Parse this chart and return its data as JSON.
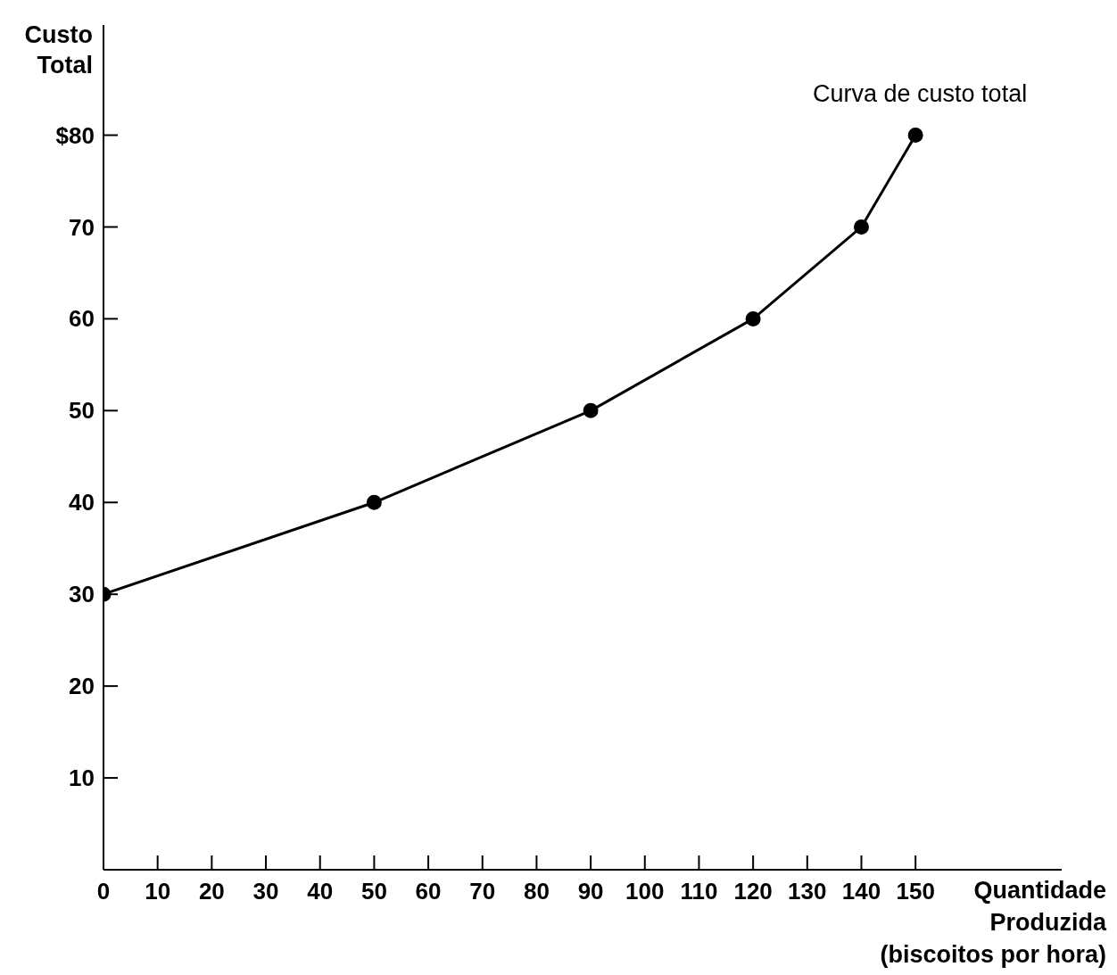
{
  "chart_data": {
    "type": "line",
    "ylabel": "Custo Total",
    "xlabel": "Quantidade Produzida (biscoitos por hora)",
    "annotations": [
      {
        "text": "Curva de custo total",
        "x": 150,
        "y": 80
      }
    ],
    "x": [
      0,
      50,
      90,
      120,
      140,
      150
    ],
    "series": [
      {
        "color": "#000000",
        "values": [
          30,
          40,
          50,
          60,
          70,
          80
        ]
      }
    ],
    "xlim": [
      0,
      177
    ],
    "xticks": [
      0,
      10,
      20,
      30,
      40,
      50,
      60,
      70,
      80,
      90,
      100,
      110,
      120,
      130,
      140,
      150
    ],
    "ylim": [
      0,
      92
    ],
    "yticks": [
      10,
      20,
      30,
      40,
      50,
      60,
      70,
      {
        "value": 80,
        "label": "$80"
      }
    ],
    "grid": false,
    "legend": false,
    "marker": "circle",
    "line_style": "solid"
  }
}
